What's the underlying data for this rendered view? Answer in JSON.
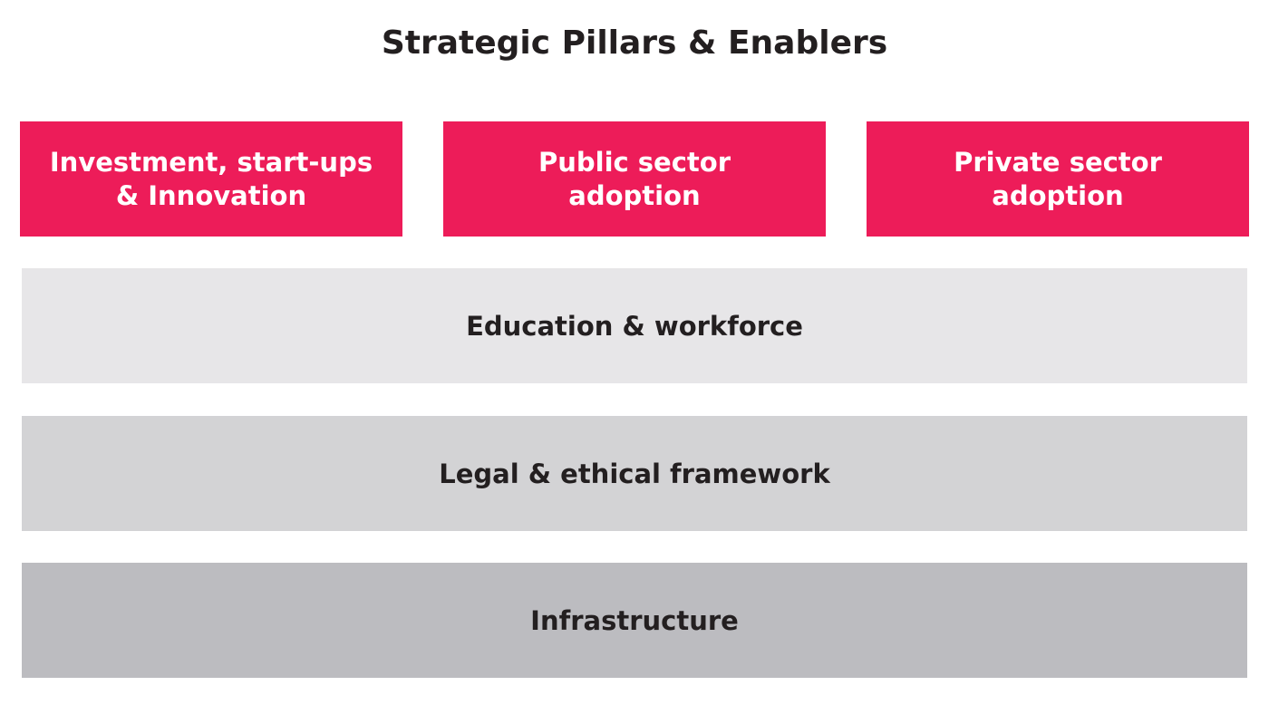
{
  "title": "Strategic Pillars & Enablers",
  "pillars": [
    {
      "label_line1": "Investment, start-ups",
      "label_line2": "& Innovation"
    },
    {
      "label": "Public sector adoption"
    },
    {
      "label": "Private sector adoption"
    }
  ],
  "enablers": [
    {
      "label": "Education & workforce"
    },
    {
      "label": "Legal & ethical framework"
    },
    {
      "label": "Infrastructure"
    }
  ],
  "colors": {
    "pillar": "#ed1c59",
    "enabler_light": "#e7e6e8",
    "enabler_mid": "#d3d3d5",
    "enabler_dark": "#bcbcc0",
    "text_dark": "#231f20",
    "text_light": "#ffffff"
  }
}
